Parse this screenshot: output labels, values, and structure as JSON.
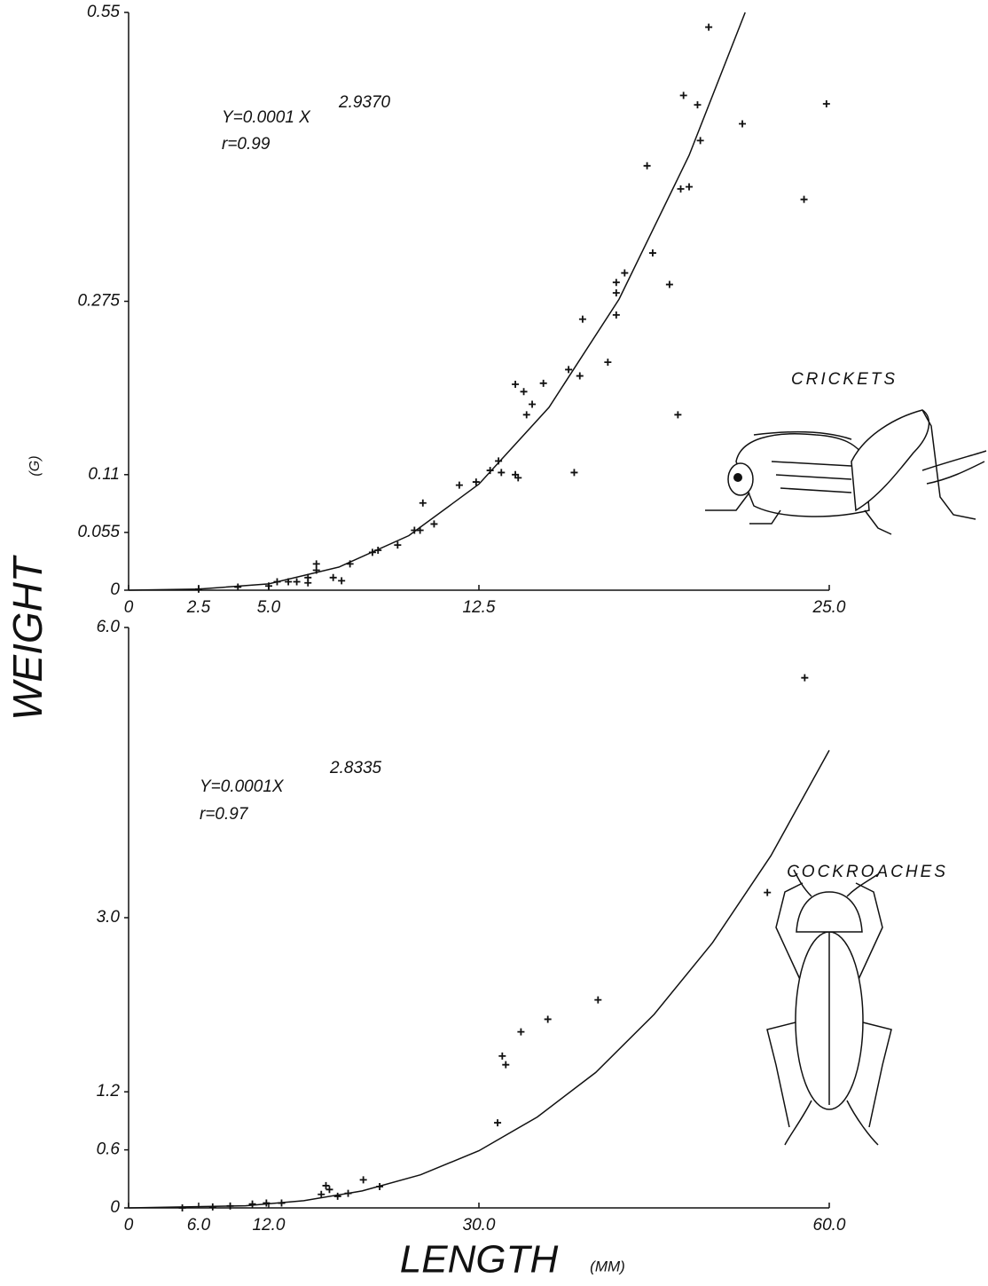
{
  "y_label": "WEIGHT",
  "y_unit": "(G)",
  "x_label": "LENGTH",
  "x_unit": "(MM)",
  "chart_data": [
    {
      "type": "scatter",
      "equation": "Y=0.0001 X",
      "exponent": "2.9370",
      "r": "r=0.99",
      "label": "CRICKETS",
      "x": [
        20.7,
        19.8,
        20.3,
        21.9,
        24.9,
        20.4,
        18.5,
        24.1,
        20.0,
        19.7,
        18.7,
        17.7,
        17.4,
        17.4,
        19.3,
        17.4,
        16.2,
        17.1,
        15.7,
        16.1,
        14.8,
        13.8,
        14.1,
        14.4,
        14.2,
        19.6,
        13.2,
        12.9,
        13.3,
        13.8,
        13.9,
        15.9,
        12.4,
        11.8,
        10.5,
        10.9,
        10.2,
        10.4,
        9.6,
        8.9,
        8.7,
        7.9,
        7.6,
        7.3,
        6.7,
        6.7,
        6.4,
        6.4,
        6.0,
        5.7,
        5.3,
        5.0,
        3.9,
        2.5
      ],
      "y": [
        0.536,
        0.471,
        0.462,
        0.444,
        0.463,
        0.428,
        0.404,
        0.372,
        0.384,
        0.382,
        0.321,
        0.302,
        0.293,
        0.283,
        0.291,
        0.262,
        0.258,
        0.217,
        0.21,
        0.204,
        0.197,
        0.196,
        0.189,
        0.177,
        0.167,
        0.167,
        0.123,
        0.114,
        0.112,
        0.11,
        0.107,
        0.112,
        0.103,
        0.1,
        0.083,
        0.063,
        0.057,
        0.057,
        0.043,
        0.038,
        0.036,
        0.025,
        0.009,
        0.012,
        0.025,
        0.019,
        0.012,
        0.007,
        0.008,
        0.008,
        0.008,
        0.004,
        0.003,
        0.001
      ],
      "fit": {
        "x": [
          0,
          2.5,
          5,
          7.5,
          10,
          12.5,
          15,
          17.5,
          20,
          22
        ],
        "y": [
          0,
          0.001,
          0.006,
          0.022,
          0.052,
          0.101,
          0.174,
          0.277,
          0.414,
          0.55
        ]
      },
      "xlim": [
        0,
        25
      ],
      "ylim": [
        0,
        0.55
      ],
      "xticks": [
        0,
        2.5,
        {
          "value": 5,
          "label": "5.0"
        },
        12.5,
        {
          "value": 25,
          "label": "25.0"
        }
      ],
      "yticks": [
        0,
        0.055,
        0.11,
        0.275,
        0.55
      ]
    },
    {
      "type": "scatter",
      "equation": "Y=0.0001X",
      "exponent": "2.8335",
      "r": "r=0.97",
      "label": "COCKROACHES",
      "x": [
        57.9,
        54.7,
        40.2,
        35.9,
        33.6,
        32.0,
        32.3,
        31.6,
        21.5,
        20.1,
        18.8,
        17.9,
        17.2,
        16.9,
        16.5,
        13.1,
        11.8,
        10.6,
        8.7,
        7.2,
        4.6
      ],
      "y": [
        5.48,
        3.26,
        2.15,
        1.95,
        1.82,
        1.57,
        1.48,
        0.88,
        0.22,
        0.29,
        0.15,
        0.12,
        0.19,
        0.23,
        0.14,
        0.05,
        0.05,
        0.04,
        0.02,
        0.01,
        0.0
      ],
      "fit": {
        "x": [
          0,
          10,
          15,
          20,
          25,
          30,
          35,
          40,
          45,
          50,
          55,
          60
        ],
        "y": [
          0,
          0.022,
          0.074,
          0.175,
          0.342,
          0.591,
          0.939,
          1.4,
          2.0,
          2.74,
          3.64,
          4.73
        ]
      },
      "xlim": [
        0,
        60
      ],
      "ylim": [
        0,
        6
      ],
      "xticks": [
        0,
        {
          "value": 6,
          "label": "6.0"
        },
        {
          "value": 12,
          "label": "12.0"
        },
        {
          "value": 30,
          "label": "30.0"
        },
        {
          "value": 60,
          "label": "60.0"
        }
      ],
      "yticks": [
        0,
        0.6,
        1.2,
        {
          "value": 3,
          "label": "3.0"
        },
        {
          "value": 6,
          "label": "6.0"
        }
      ]
    }
  ]
}
